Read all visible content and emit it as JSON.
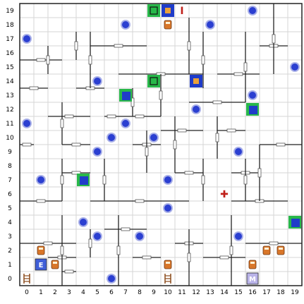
{
  "grid": {
    "cols": 20,
    "rows": 20,
    "row_labels": [
      "19",
      "18",
      "17",
      "16",
      "15",
      "14",
      "13",
      "12",
      "11",
      "10",
      "9",
      "8",
      "7",
      "6",
      "5",
      "4",
      "3",
      "2",
      "1",
      "0"
    ],
    "col_labels": [
      "0",
      "1",
      "2",
      "3",
      "4",
      "5",
      "6",
      "7",
      "8",
      "9",
      "10",
      "11",
      "12",
      "13",
      "14",
      "15",
      "16",
      "17",
      "18",
      "19"
    ]
  },
  "colors": {
    "grid_line": "#d6d6d6",
    "wall": "#222222",
    "background": "#ffffff",
    "marker_fill": "#2b3fd1",
    "marker_ring": "#a9b0e8",
    "tile_green": "#28b84a",
    "tile_blue": "#1f3cc9"
  },
  "markers": [
    [
      0,
      17
    ],
    [
      5,
      14
    ],
    [
      7,
      18
    ],
    [
      13,
      18
    ],
    [
      16,
      19
    ],
    [
      19,
      15
    ],
    [
      7,
      11
    ],
    [
      6,
      10
    ],
    [
      5,
      9
    ],
    [
      9,
      10
    ],
    [
      12,
      12
    ],
    [
      0,
      11
    ],
    [
      16,
      13
    ],
    [
      15,
      9
    ],
    [
      1,
      7
    ],
    [
      10,
      7
    ],
    [
      10,
      5
    ],
    [
      4,
      4
    ],
    [
      5,
      3
    ],
    [
      8,
      3
    ],
    [
      15,
      3
    ],
    [
      6,
      0
    ]
  ],
  "tiles": [
    {
      "c": 7,
      "r": 13,
      "type": "green-blue"
    },
    {
      "c": 4,
      "r": 7,
      "type": "green-blue"
    },
    {
      "c": 16,
      "r": 12,
      "type": "green-blue"
    },
    {
      "c": 19,
      "r": 4,
      "type": "green-blue"
    },
    {
      "c": 9,
      "r": 14,
      "type": "green-box"
    },
    {
      "c": 12,
      "r": 14,
      "type": "blue-box"
    },
    {
      "c": 9,
      "r": 19,
      "type": "green-box"
    },
    {
      "c": 10,
      "r": 19,
      "type": "blue-box"
    }
  ],
  "items": [
    {
      "c": 11,
      "r": 19,
      "glyph": "I",
      "kind": "letter-i"
    },
    {
      "c": 10,
      "r": 18,
      "glyph": "",
      "kind": "orange-figure"
    },
    {
      "c": 1,
      "r": 2,
      "glyph": "",
      "kind": "robot"
    },
    {
      "c": 2,
      "r": 1,
      "glyph": "",
      "kind": "robot"
    },
    {
      "c": 1,
      "r": 1,
      "glyph": "E",
      "kind": "exit-tile"
    },
    {
      "c": 0,
      "r": 0,
      "glyph": "",
      "kind": "ladder"
    },
    {
      "c": 10,
      "r": 1,
      "glyph": "",
      "kind": "robot"
    },
    {
      "c": 10,
      "r": 0,
      "glyph": "",
      "kind": "ladder"
    },
    {
      "c": 14,
      "r": 6,
      "glyph": "✚",
      "kind": "cross"
    },
    {
      "c": 16,
      "r": 0,
      "glyph": "M",
      "kind": "m-tile"
    },
    {
      "c": 16,
      "r": 1,
      "glyph": "",
      "kind": "robot"
    },
    {
      "c": 17,
      "r": 2,
      "glyph": "",
      "kind": "robot"
    },
    {
      "c": 18,
      "r": 2,
      "glyph": "",
      "kind": "orange-figure"
    }
  ],
  "walls_h": [
    [
      0,
      16,
      3
    ],
    [
      0,
      14,
      2
    ],
    [
      2,
      12,
      3
    ],
    [
      3,
      10,
      2
    ],
    [
      0,
      10,
      1
    ],
    [
      3,
      8,
      2
    ],
    [
      0,
      6,
      3
    ],
    [
      5,
      6,
      7
    ],
    [
      0,
      3,
      4
    ],
    [
      2,
      2,
      2
    ],
    [
      3,
      1,
      1
    ],
    [
      6,
      4,
      3
    ],
    [
      8,
      2,
      2
    ],
    [
      11,
      3,
      2
    ],
    [
      13,
      2,
      3
    ],
    [
      16,
      3,
      4
    ],
    [
      15,
      6,
      4
    ],
    [
      15,
      8,
      2
    ],
    [
      17,
      10,
      3
    ],
    [
      14,
      11,
      2
    ],
    [
      12,
      13,
      4
    ],
    [
      17,
      17,
      2
    ],
    [
      14,
      15,
      3
    ],
    [
      7,
      15,
      6
    ],
    [
      5,
      17,
      4
    ],
    [
      7,
      12,
      3
    ],
    [
      10,
      11,
      3
    ],
    [
      11,
      8,
      2
    ],
    [
      6,
      12,
      1
    ],
    [
      4,
      14,
      2
    ],
    [
      8,
      10,
      2
    ]
  ],
  "walls_v": [
    [
      3,
      10,
      3
    ],
    [
      3,
      6,
      3
    ],
    [
      3,
      0,
      5
    ],
    [
      5,
      2,
      2
    ],
    [
      6,
      6,
      3
    ],
    [
      7,
      0,
      5
    ],
    [
      8,
      12,
      2
    ],
    [
      10,
      12,
      3
    ],
    [
      11,
      8,
      4
    ],
    [
      13,
      14,
      4
    ],
    [
      14,
      9,
      3
    ],
    [
      16,
      13,
      5
    ],
    [
      18,
      15,
      5
    ],
    [
      17,
      6,
      4
    ],
    [
      15,
      0,
      5
    ],
    [
      16,
      6,
      3
    ],
    [
      12,
      0,
      4
    ],
    [
      13,
      6,
      3
    ],
    [
      9,
      8,
      3
    ],
    [
      5,
      14,
      4
    ],
    [
      12,
      15,
      4
    ],
    [
      2,
      15,
      2
    ],
    [
      4,
      16,
      2
    ]
  ]
}
